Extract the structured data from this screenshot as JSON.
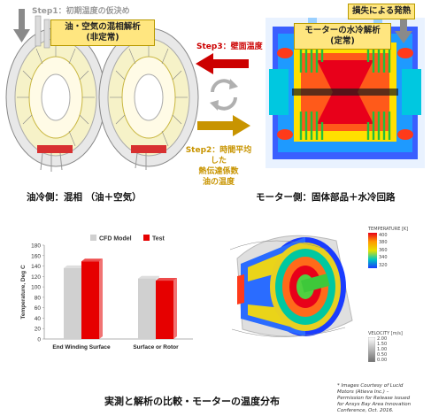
{
  "top_left": {
    "step1": "Step1：初期温度の仮決め",
    "box_line1": "油・空気の混相解析",
    "box_line2": "(非定常)",
    "caption": "油冷側：混相 （油＋空気）"
  },
  "top_right": {
    "loss_label": "損失による発熱",
    "box_line1": "モーターの水冷解析",
    "box_line2": "(定常)",
    "caption": "モーター側：固体部品＋水冷回路"
  },
  "middle": {
    "step3": "Step3：壁面温度",
    "step2_line1": "Step2：時間平均した",
    "step2_line2": "熱伝達係数",
    "step2_line3": "油の温度"
  },
  "chart_data": {
    "type": "bar",
    "categories": [
      "End Winding Surface",
      "Surface or Rotor"
    ],
    "series": [
      {
        "name": "CFD Model",
        "values": [
          136,
          116
        ],
        "color": "#d0d0d0"
      },
      {
        "name": "Test",
        "values": [
          149,
          112
        ],
        "color": "#e60000"
      }
    ],
    "ylabel": "Temperature, Deg C",
    "ylim": [
      0,
      180
    ],
    "yticks": [
      0,
      20,
      40,
      60,
      80,
      100,
      120,
      140,
      160,
      180
    ],
    "legend": "top"
  },
  "sim": {
    "temp_title": "TEMPERATURE [K]",
    "temp_ticks": [
      "400",
      "380",
      "360",
      "340",
      "320"
    ],
    "vel_title": "VELOCITY [m/s]",
    "vel_ticks": [
      "2.00",
      "1.50",
      "1.00",
      "0.50",
      "0.00"
    ]
  },
  "bottom_caption": "実測と解析の比較・モーターの温度分布",
  "credit": {
    "l1": "* Images Courtesy of Lucid",
    "l2": "Motors (Atieva Inc.) –",
    "l3": "Permission for Release issued",
    "l4": "for Ansys Bay Area Innovation",
    "l5": "Conference, Oct. 2016."
  },
  "colors": {
    "red": "#cc0000",
    "gold": "#c89400",
    "yellow": "#ffe680"
  }
}
